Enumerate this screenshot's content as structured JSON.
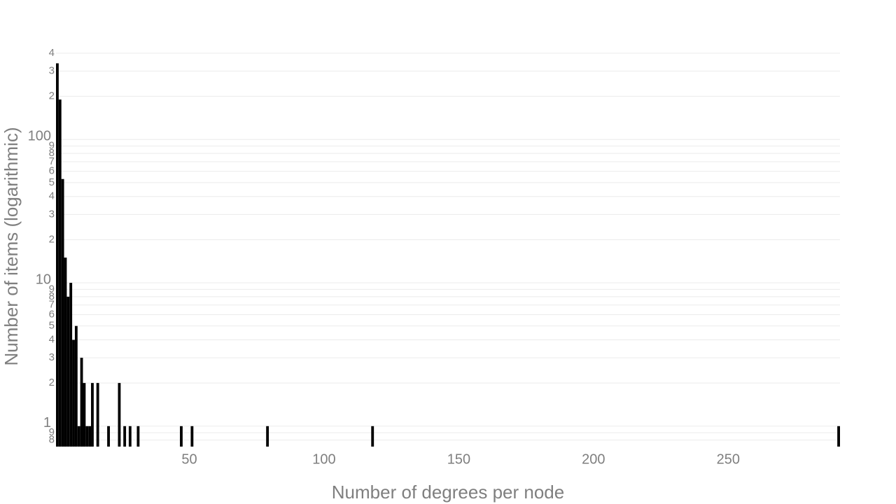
{
  "chart_data": {
    "type": "bar",
    "log_y": true,
    "grid": true,
    "color": "#000000",
    "xlabel": "Number of degrees per node",
    "ylabel": "Number of items (logarithmic)",
    "x": [
      1,
      2,
      3,
      4,
      5,
      6,
      7,
      8,
      9,
      10,
      11,
      12,
      13,
      14,
      16,
      20,
      24,
      26,
      28,
      31,
      47,
      51,
      79,
      118,
      291
    ],
    "values": [
      340,
      190,
      53,
      15,
      8,
      10,
      4,
      5,
      1,
      3,
      2,
      1,
      1,
      2,
      2,
      1,
      2,
      1,
      1,
      1,
      1,
      1,
      1,
      1,
      1
    ],
    "xlim": [
      0.5,
      291.5
    ],
    "xticks": [
      50,
      100,
      150,
      200,
      250
    ],
    "ylim": [
      0.72,
      400
    ],
    "yticks": [
      {
        "value": 0.8,
        "label": "8"
      },
      {
        "value": 0.9,
        "label": "9"
      },
      1,
      2,
      3,
      4,
      5,
      6,
      7,
      8,
      9,
      10,
      {
        "value": 20,
        "label": "2"
      },
      {
        "value": 30,
        "label": "3"
      },
      {
        "value": 40,
        "label": "4"
      },
      {
        "value": 50,
        "label": "5"
      },
      {
        "value": 60,
        "label": "6"
      },
      {
        "value": 70,
        "label": "7"
      },
      {
        "value": 80,
        "label": "8"
      },
      {
        "value": 90,
        "label": "9"
      },
      100,
      {
        "value": 200,
        "label": "2"
      },
      {
        "value": 300,
        "label": "3"
      },
      {
        "value": 400,
        "label": "4"
      }
    ]
  }
}
